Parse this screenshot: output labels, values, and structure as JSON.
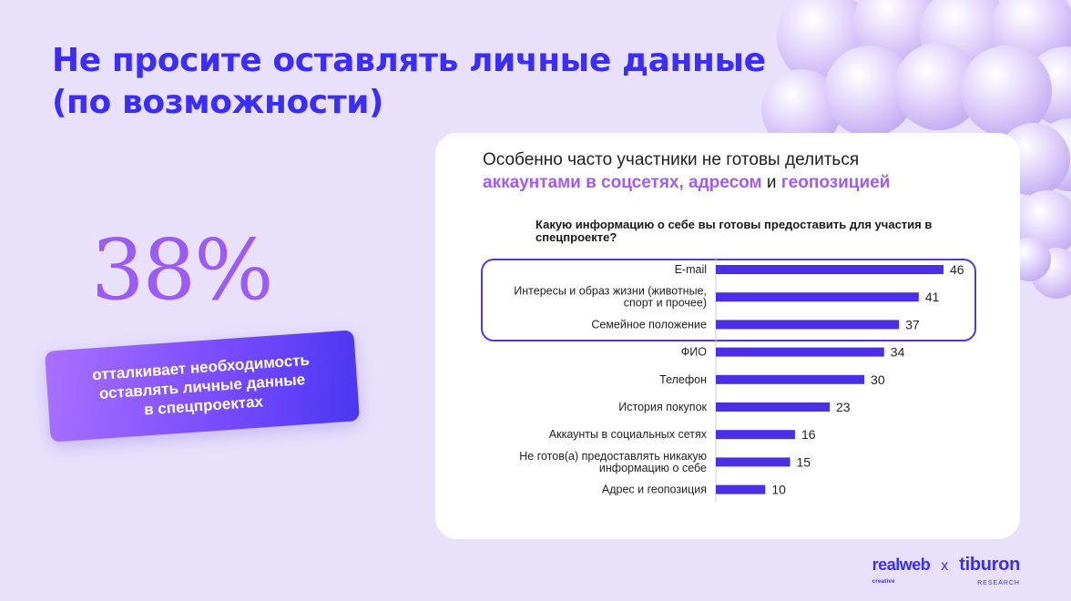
{
  "slide": {
    "title_line1": "Не просите оставлять личные данные",
    "title_line2": "(по возможности)"
  },
  "stat": {
    "value": "38%",
    "caption_line1": "отталкивает необходимость",
    "caption_line2": "оставлять личные данные",
    "caption_line3": "в спецпроектах"
  },
  "card": {
    "headline_line1": "Особенно часто участники не готовы делиться",
    "headline_part1": "аккаунтами в соцсетях, адресом",
    "headline_part2": " и ",
    "headline_part3": "геопозицией"
  },
  "chart_data": {
    "type": "bar",
    "orientation": "horizontal",
    "title": "Какую информацию о себе вы готовы предоставить для участия в спецпроекте?",
    "categories": [
      [
        "E-mail"
      ],
      [
        "Интересы и образ жизни (животные,",
        "спорт и прочее)"
      ],
      [
        "Семейное положение"
      ],
      [
        "ФИО"
      ],
      [
        "Телефон"
      ],
      [
        "История покупок"
      ],
      [
        "Аккаунты в социальных сетях"
      ],
      [
        "Не готов(а) предоставлять никакую",
        "информацию о себе"
      ],
      [
        "Адрес и геопозиция"
      ]
    ],
    "values": [
      46,
      41,
      37,
      34,
      30,
      23,
      16,
      15,
      10
    ],
    "highlighted": [
      "E-mail",
      "Интересы и образ жизни (животные, спорт и прочее)",
      "Семейное положение"
    ],
    "bar_color": "#4b2fe6"
  },
  "logos": {
    "realweb": "realweb",
    "realweb_sub": "creative",
    "separator": "x",
    "tiburon": "tiburon",
    "tiburon_sub": "RESEARCH"
  },
  "colors": {
    "background": "#e9e1fb",
    "title": "#3b2dff",
    "accent": "#a25cf6",
    "bar": "#4b2fe6"
  }
}
